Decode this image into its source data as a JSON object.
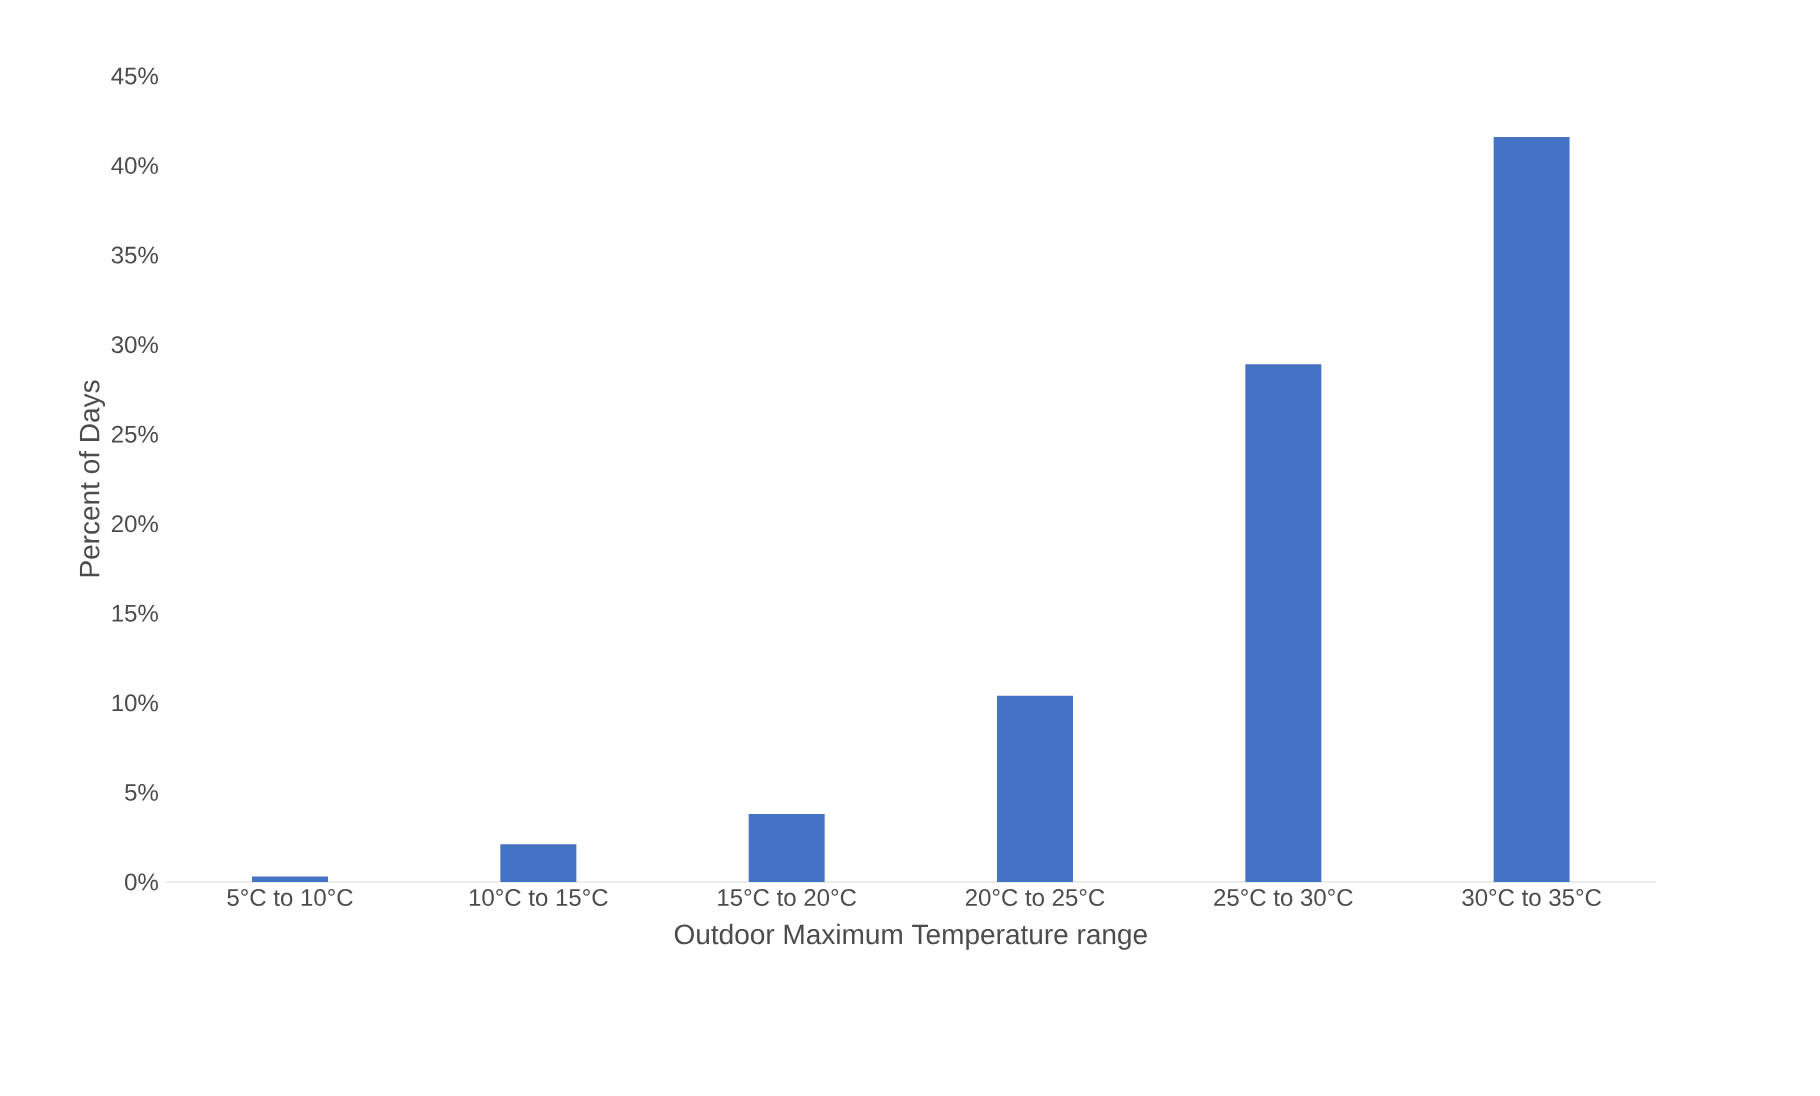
{
  "chart_data": {
    "type": "bar",
    "xlabel": "Outdoor Maximum Temperature range",
    "ylabel": "Percent of Days",
    "categories": [
      "5°C to 10°C",
      "10°C to 15°C",
      "15°C to 20°C",
      "20°C to 25°C",
      "25°C to 30°C",
      "30°C to 35°C"
    ],
    "values": [
      0.3,
      2.1,
      3.8,
      10.4,
      28.9,
      41.6
    ],
    "color": "#4472c4",
    "ylim": [
      0,
      45
    ],
    "yticks": [
      {
        "value": 0,
        "label": "0%"
      },
      {
        "value": 5,
        "label": "5%"
      },
      {
        "value": 10,
        "label": "10%"
      },
      {
        "value": 15,
        "label": "15%"
      },
      {
        "value": 20,
        "label": "20%"
      },
      {
        "value": 25,
        "label": "25%"
      },
      {
        "value": 30,
        "label": "30%"
      },
      {
        "value": 35,
        "label": "35%"
      },
      {
        "value": 40,
        "label": "40%"
      },
      {
        "value": 45,
        "label": "45%"
      }
    ]
  }
}
